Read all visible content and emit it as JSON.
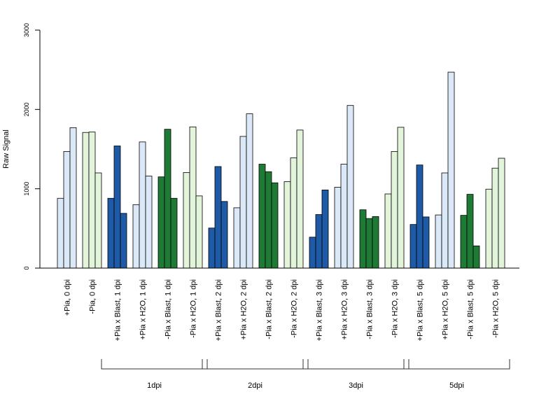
{
  "colors": {
    "plus_blast": "#1f5aa6",
    "plus_h2o": "#dbe8f7",
    "minus_blast": "#1f7a35",
    "minus_h2o": "#e2f4da",
    "border": "#000000",
    "axis": "#000000"
  },
  "chart_data": {
    "type": "bar",
    "ylabel": "Raw Signal",
    "xlabel": "",
    "title": "",
    "ylim": [
      0,
      3000
    ],
    "yticks": [
      "0",
      "1000",
      "2000",
      "3000"
    ],
    "grid": false,
    "categories": [
      "+Pia, 0 dpi",
      "-Pia, 0 dpi",
      "+Pia x Blast, 1 dpi",
      "+Pia x H2O, 1 dpi",
      "-Pia x Blast, 1 dpi",
      "-Pia x H2O, 1 dpi",
      "+Pia x Blast, 2 dpi",
      "+Pia x H2O, 2 dpi",
      "-Pia x Blast, 2 dpi",
      "-Pia x H2O, 2 dpi",
      "+Pia x Blast, 3 dpi",
      "+Pia x H2O, 3 dpi",
      "-Pia x Blast, 3 dpi",
      "-Pia x H2O, 3 dpi",
      "+Pia x Blast, 5 dpi",
      "+Pia x H2O, 5 dpi",
      "-Pia x Blast, 5 dpi",
      "-Pia x H2O, 5 dpi"
    ],
    "bar_colors": [
      "plus_h2o",
      "minus_h2o",
      "plus_blast",
      "plus_h2o",
      "minus_blast",
      "minus_h2o",
      "plus_blast",
      "plus_h2o",
      "minus_blast",
      "minus_h2o",
      "plus_blast",
      "plus_h2o",
      "minus_blast",
      "minus_h2o",
      "plus_blast",
      "plus_h2o",
      "minus_blast",
      "minus_h2o"
    ],
    "values": [
      [
        880,
        1470,
        1770
      ],
      [
        1710,
        1715,
        1200
      ],
      [
        880,
        1540,
        690
      ],
      [
        800,
        1590,
        1160
      ],
      [
        1150,
        1750,
        880
      ],
      [
        1205,
        1780,
        910
      ],
      [
        505,
        1280,
        840
      ],
      [
        760,
        1660,
        1945
      ],
      [
        1310,
        1215,
        1075
      ],
      [
        1090,
        1390,
        1740
      ],
      [
        390,
        675,
        985
      ],
      [
        1020,
        1310,
        2050
      ],
      [
        735,
        625,
        650
      ],
      [
        935,
        1470,
        1775
      ],
      [
        550,
        1300,
        645
      ],
      [
        670,
        1200,
        2470
      ],
      [
        665,
        930,
        280
      ],
      [
        995,
        1260,
        1385
      ]
    ],
    "groups": [
      {
        "label": "1dpi",
        "first": 2,
        "last": 5
      },
      {
        "label": "2dpi",
        "first": 6,
        "last": 9
      },
      {
        "label": "3dpi",
        "first": 10,
        "last": 13
      },
      {
        "label": "5dpi",
        "first": 14,
        "last": 17
      }
    ]
  }
}
